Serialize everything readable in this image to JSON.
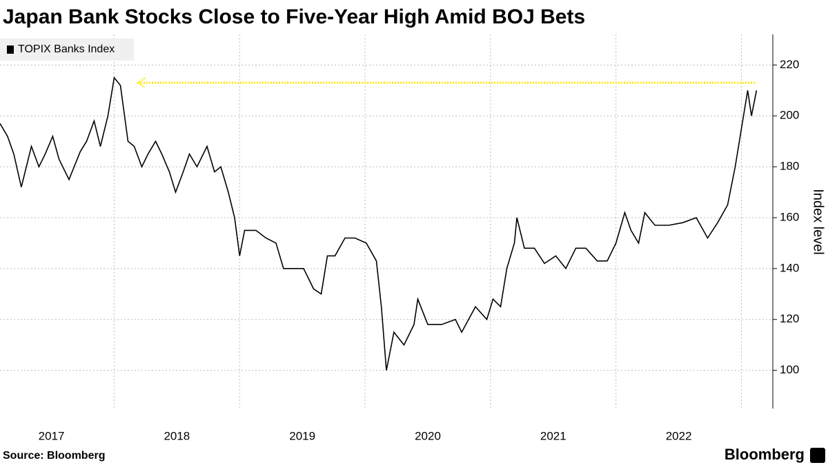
{
  "chart_data": {
    "type": "line",
    "title": "Japan Bank Stocks Close to Five-Year High Amid BOJ Bets",
    "y_axis_label": "Index level",
    "source": "Source: Bloomberg",
    "brand": "Bloomberg",
    "legend": "top-left",
    "grid": true,
    "xlim": [
      2017.09,
      2023.25
    ],
    "xticks": [
      {
        "value": 2017.5,
        "label": "2017"
      },
      {
        "value": 2018.5,
        "label": "2018"
      },
      {
        "value": 2019.5,
        "label": "2019"
      },
      {
        "value": 2020.5,
        "label": "2020"
      },
      {
        "value": 2021.5,
        "label": "2021"
      },
      {
        "value": 2022.5,
        "label": "2022"
      }
    ],
    "xgrid": [
      2018,
      2019,
      2020,
      2021,
      2022,
      2023
    ],
    "ylim": [
      85,
      232
    ],
    "yticks": [
      100,
      120,
      140,
      160,
      180,
      200,
      220
    ],
    "series": [
      {
        "name": "TOPIX Banks Index",
        "color": "#000000",
        "x": [
          2017.09,
          2017.15,
          2017.2,
          2017.26,
          2017.34,
          2017.4,
          2017.45,
          2017.51,
          2017.56,
          2017.64,
          2017.73,
          2017.78,
          2017.84,
          2017.89,
          2017.95,
          2018.0,
          2018.05,
          2018.11,
          2018.16,
          2018.22,
          2018.27,
          2018.33,
          2018.38,
          2018.44,
          2018.49,
          2018.55,
          2018.6,
          2018.66,
          2018.74,
          2018.8,
          2018.85,
          2018.91,
          2018.96,
          2019.0,
          2019.04,
          2019.13,
          2019.21,
          2019.29,
          2019.35,
          2019.43,
          2019.51,
          2019.59,
          2019.65,
          2019.7,
          2019.76,
          2019.84,
          2019.92,
          2020.01,
          2020.09,
          2020.13,
          2020.17,
          2020.23,
          2020.31,
          2020.39,
          2020.42,
          2020.5,
          2020.61,
          2020.72,
          2020.77,
          2020.88,
          2020.97,
          2021.02,
          2021.08,
          2021.13,
          2021.19,
          2021.21,
          2021.27,
          2021.35,
          2021.43,
          2021.52,
          2021.6,
          2021.68,
          2021.76,
          2021.85,
          2021.93,
          2022.0,
          2022.07,
          2022.12,
          2022.18,
          2022.23,
          2022.31,
          2022.42,
          2022.53,
          2022.64,
          2022.73,
          2022.81,
          2022.89,
          2022.95,
          2023.0,
          2023.05,
          2023.08,
          2023.12
        ],
        "values": [
          197,
          192,
          185,
          172,
          188,
          180,
          185,
          192,
          183,
          175,
          186,
          190,
          198,
          188,
          200,
          215,
          212,
          190,
          188,
          180,
          185,
          190,
          185,
          178,
          170,
          178,
          185,
          180,
          188,
          178,
          180,
          170,
          160,
          145,
          155,
          155,
          152,
          150,
          140,
          140,
          140,
          132,
          130,
          145,
          145,
          152,
          152,
          150,
          143,
          125,
          100,
          115,
          110,
          118,
          128,
          118,
          118,
          120,
          115,
          125,
          120,
          128,
          125,
          140,
          150,
          160,
          148,
          148,
          142,
          145,
          140,
          148,
          148,
          143,
          143,
          150,
          162,
          155,
          150,
          162,
          157,
          157,
          158,
          160,
          152,
          158,
          165,
          180,
          195,
          210,
          200,
          210
        ]
      }
    ],
    "reference_arrow": {
      "value": 213,
      "from": 2018.19,
      "to": 2023.12,
      "color": "#ffe900"
    }
  }
}
